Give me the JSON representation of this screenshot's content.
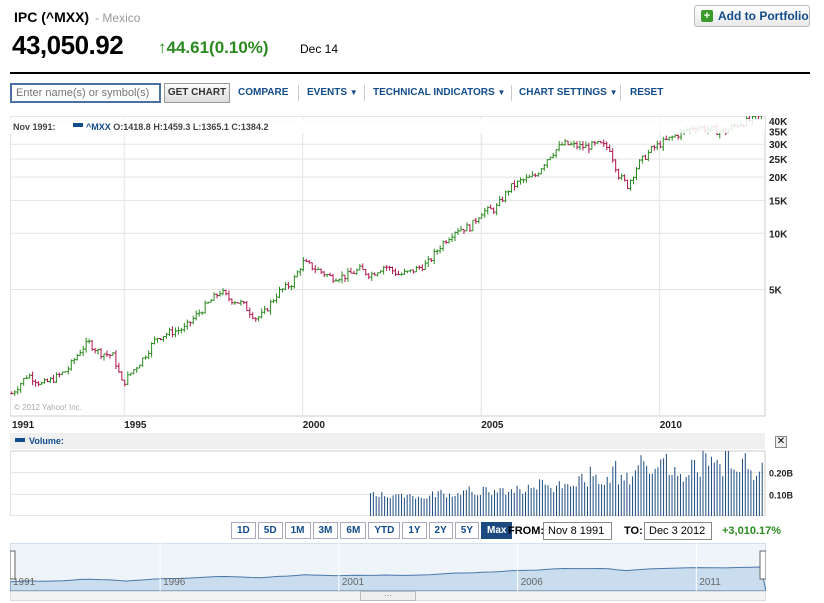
{
  "header": {
    "title": "IPC (^MXX)",
    "exchange": "- Mexico",
    "price": "43,050.92",
    "change": "44.61",
    "change_pct": "(0.10%)",
    "date": "Dec 14",
    "add_button": "Add to Portfolio"
  },
  "toolbar": {
    "symbol_placeholder": "Enter name(s) or symbol(s)",
    "get_chart": "GET CHART",
    "compare": "COMPARE",
    "events": "EVENTS",
    "technical": "TECHNICAL INDICATORS",
    "settings": "CHART SETTINGS",
    "reset": "RESET"
  },
  "periods": [
    "1D",
    "5D",
    "1M",
    "3M",
    "6M",
    "YTD",
    "1Y",
    "2Y",
    "5Y",
    "Max"
  ],
  "active_period": "Max",
  "range": {
    "from_label": "FROM:",
    "from": "Nov 8 1991",
    "to_label": "TO:",
    "to": "Dec 3 2012",
    "pct": "+3,010.17%"
  },
  "colors": {
    "up": "#2a8a1f",
    "down": "#b0144c",
    "accent": "#124c8a"
  },
  "chart_data": [
    {
      "type": "line",
      "log_scale": true,
      "ohlc_label": "Nov 1991:",
      "series_name": "^MXX",
      "ohlc": {
        "O": "1418.8",
        "H": "1459.3",
        "L": "1365.1",
        "C": "1384.2"
      },
      "watermark": "© 2012 Yahoo! Inc.",
      "x_ticks": [
        "1991",
        "1995",
        "2000",
        "2005",
        "2010"
      ],
      "y_ticks": [
        {
          "value": 40000,
          "label": "40K"
        },
        {
          "value": 35000,
          "label": "35K"
        },
        {
          "value": 30000,
          "label": "30K"
        },
        {
          "value": 25000,
          "label": "25K"
        },
        {
          "value": 20000,
          "label": "20K"
        },
        {
          "value": 15000,
          "label": "15K"
        },
        {
          "value": 10000,
          "label": "10K"
        },
        {
          "value": 5000,
          "label": "5K"
        }
      ],
      "xlim": [
        1991.8,
        2012.95
      ],
      "ylim": [
        1050,
        42500
      ],
      "x": [
        1991.85,
        1992.3,
        1992.7,
        1993.0,
        1993.4,
        1993.8,
        1994.0,
        1994.3,
        1994.7,
        1994.95,
        1995.2,
        1995.5,
        1995.9,
        1996.3,
        1996.7,
        1997.0,
        1997.4,
        1997.7,
        1997.9,
        1998.3,
        1998.7,
        1998.9,
        1999.3,
        1999.7,
        2000.0,
        2000.4,
        2000.8,
        2001.2,
        2001.6,
        2001.9,
        2002.3,
        2002.7,
        2003.0,
        2003.5,
        2003.9,
        2004.3,
        2004.7,
        2005.0,
        2005.4,
        2005.8,
        2006.1,
        2006.5,
        2006.9,
        2007.3,
        2007.6,
        2007.9,
        2008.3,
        2008.6,
        2008.85,
        2009.1,
        2009.4,
        2009.8,
        2010.2,
        2010.6,
        2011.0,
        2011.4,
        2011.8,
        2012.2,
        2012.6,
        2012.92
      ],
      "y": [
        1384,
        1750,
        1550,
        1650,
        1850,
        2400,
        2600,
        2300,
        2200,
        1550,
        1800,
        2100,
        2750,
        2950,
        3100,
        3600,
        4300,
        4900,
        4500,
        4200,
        3500,
        3700,
        4800,
        5400,
        7000,
        6400,
        5800,
        5900,
        6400,
        6000,
        6700,
        6000,
        6200,
        6900,
        8800,
        10500,
        10800,
        13000,
        13500,
        17500,
        19000,
        20200,
        26000,
        30200,
        29500,
        29000,
        30000,
        28500,
        20500,
        18000,
        23500,
        28500,
        31500,
        34500,
        37500,
        36000,
        34800,
        38500,
        40500,
        43050
      ],
      "volume_label": "Volume:",
      "volume_ticks": [
        {
          "value": 0.2,
          "label": "0.20B"
        },
        {
          "value": 0.1,
          "label": "0.10B"
        }
      ],
      "volume_start_year": 2001.9,
      "volume_values_billions": [
        0.11,
        0.1,
        0.1,
        0.09,
        0.1,
        0.09,
        0.1,
        0.1,
        0.09,
        0.08,
        0.09,
        0.1,
        0.11,
        0.1,
        0.1,
        0.1,
        0.11,
        0.12,
        0.1,
        0.11,
        0.12,
        0.1,
        0.11,
        0.14,
        0.1,
        0.12,
        0.13,
        0.12,
        0.13,
        0.12,
        0.15,
        0.13,
        0.12,
        0.14,
        0.15,
        0.13,
        0.16,
        0.18,
        0.15,
        0.2,
        0.17,
        0.16,
        0.18,
        0.24,
        0.17,
        0.19,
        0.16,
        0.22,
        0.25,
        0.21,
        0.19,
        0.23,
        0.26,
        0.22,
        0.2,
        0.18,
        0.21,
        0.24,
        0.19,
        0.27,
        0.25,
        0.23,
        0.21,
        0.28,
        0.24,
        0.2,
        0.26,
        0.22,
        0.19,
        0.24
      ]
    },
    {
      "type": "area",
      "x_ticks": [
        "1991",
        "1996",
        "2001",
        "2006",
        "2011"
      ]
    }
  ]
}
